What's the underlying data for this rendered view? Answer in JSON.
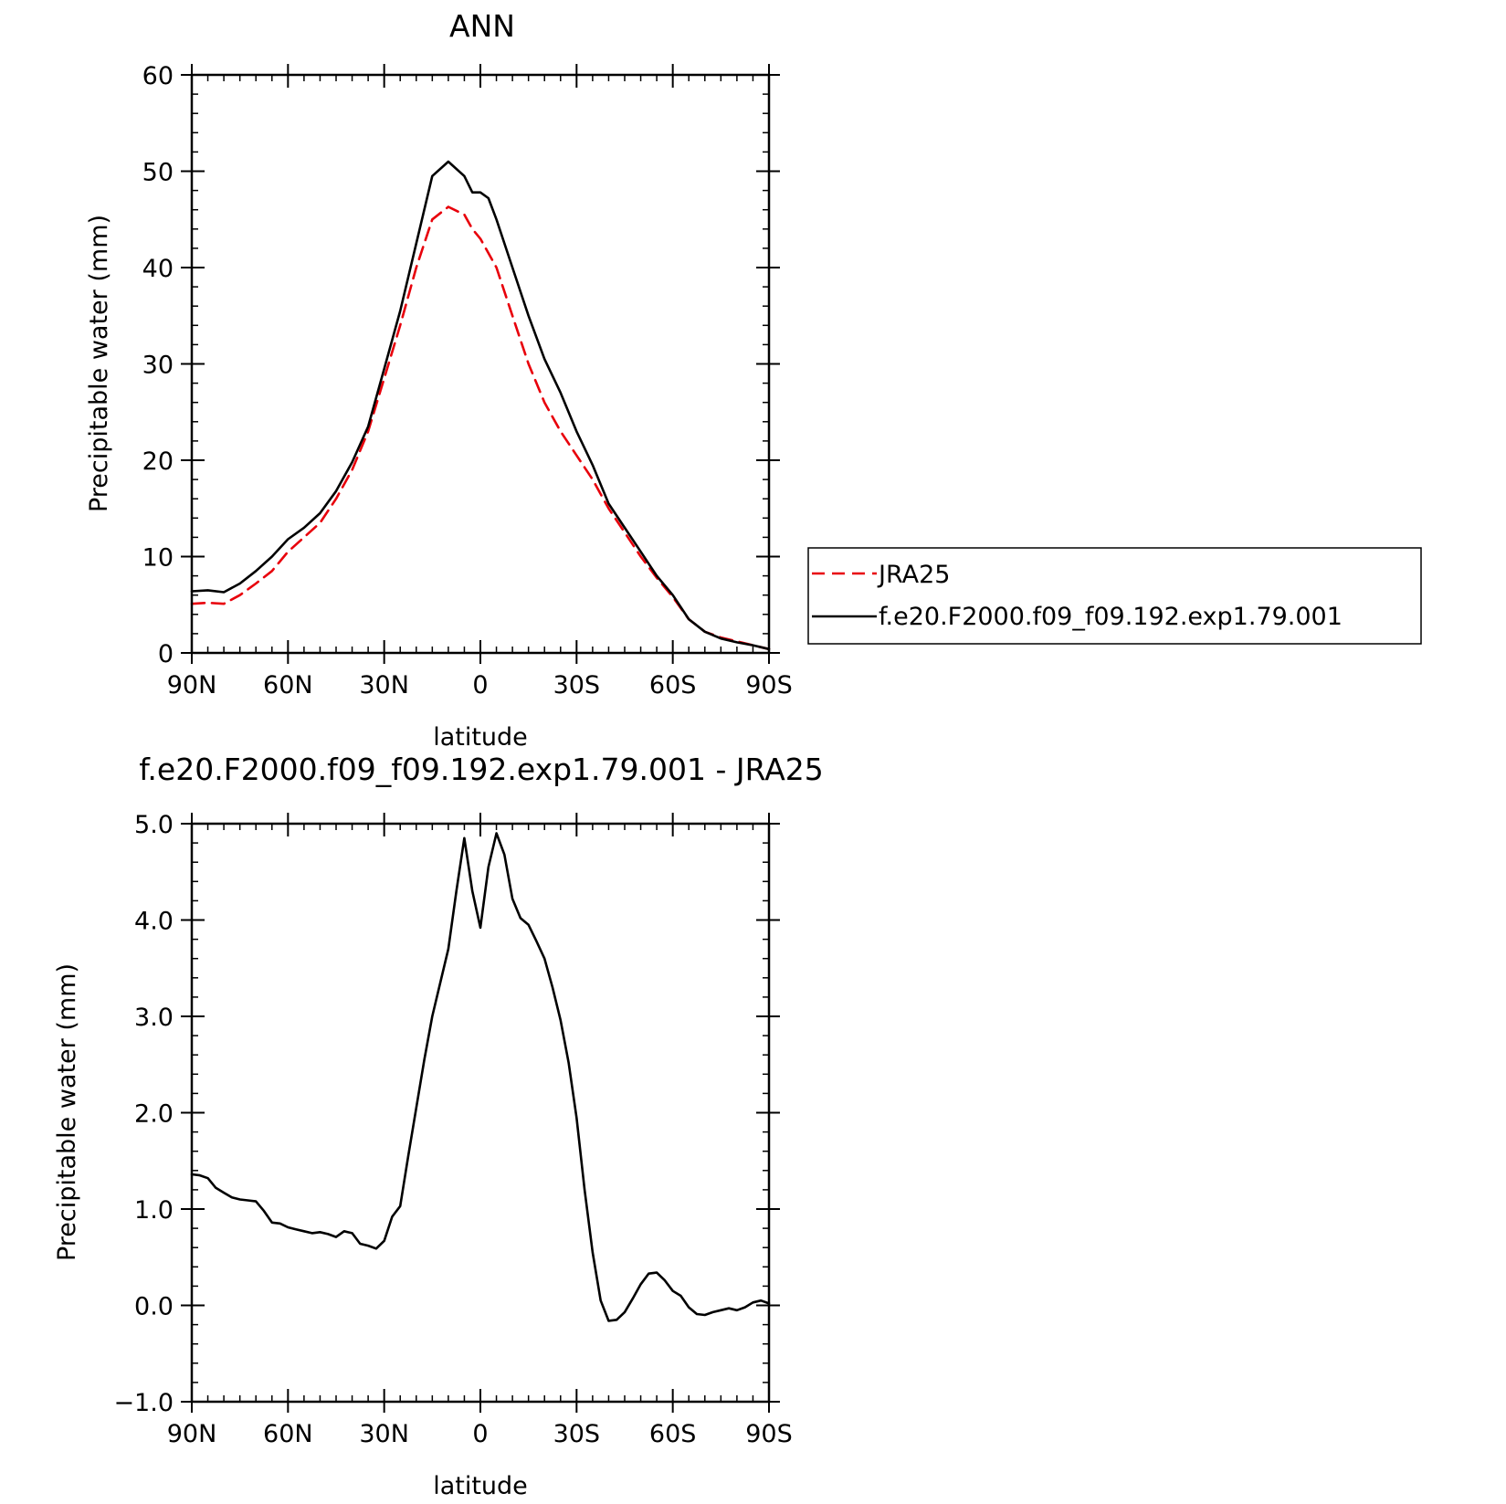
{
  "chart_data": [
    {
      "type": "line",
      "title": "ANN",
      "xlabel": "latitude",
      "ylabel": "Precipitable water (mm)",
      "xlim": [
        90,
        -90
      ],
      "ylim": [
        0,
        60
      ],
      "x_tick_values": [
        90,
        60,
        30,
        0,
        -30,
        -60,
        -90
      ],
      "x_tick_labels": [
        "90N",
        "60N",
        "30N",
        "0",
        "30S",
        "60S",
        "90S"
      ],
      "y_tick_values": [
        0,
        10,
        20,
        30,
        40,
        50,
        60
      ],
      "y_tick_labels": [
        "0",
        "10",
        "20",
        "30",
        "40",
        "50",
        "60"
      ],
      "legend_position": "right",
      "series": [
        {
          "name": "JRA25",
          "color": "#e8000b",
          "dash": "dashed",
          "x": [
            90,
            85,
            80,
            75,
            70,
            65,
            60,
            55,
            50,
            45,
            40,
            35,
            30,
            25,
            20,
            15,
            10,
            5,
            2.5,
            0,
            -5,
            -10,
            -15,
            -20,
            -25,
            -30,
            -35,
            -40,
            -45,
            -50,
            -55,
            -60,
            -65,
            -70,
            -75,
            -80,
            -85,
            -90
          ],
          "values": [
            5.1,
            5.2,
            5.1,
            6.0,
            7.2,
            8.5,
            10.5,
            12.0,
            13.5,
            16.0,
            19.0,
            23.0,
            28.5,
            34.0,
            40.0,
            45.0,
            46.3,
            45.5,
            44.0,
            43.0,
            40.0,
            35.0,
            30.0,
            26.0,
            23.0,
            20.5,
            18.0,
            15.0,
            12.5,
            10.0,
            7.8,
            5.8,
            3.5,
            2.2,
            1.6,
            1.2,
            0.8,
            0.4
          ]
        },
        {
          "name": "f.e20.F2000.f09_f09.192.exp1.79.001",
          "color": "#000000",
          "dash": "solid",
          "x": [
            90,
            85,
            80,
            75,
            70,
            65,
            60,
            55,
            50,
            45,
            40,
            35,
            30,
            25,
            20,
            15,
            10,
            5,
            2.5,
            0,
            -2.5,
            -5,
            -10,
            -15,
            -20,
            -25,
            -30,
            -35,
            -40,
            -45,
            -50,
            -55,
            -60,
            -65,
            -70,
            -75,
            -80,
            -85,
            -90
          ],
          "values": [
            6.4,
            6.5,
            6.3,
            7.2,
            8.5,
            10.0,
            11.8,
            13.0,
            14.5,
            16.8,
            19.8,
            23.5,
            29.5,
            35.5,
            42.5,
            49.5,
            51.0,
            49.5,
            47.8,
            47.8,
            47.2,
            45.0,
            40.0,
            35.0,
            30.5,
            27.0,
            23.0,
            19.5,
            15.5,
            13.0,
            10.5,
            8.0,
            6.0,
            3.5,
            2.2,
            1.5,
            1.1,
            0.8,
            0.4
          ]
        }
      ]
    },
    {
      "type": "line",
      "title": "f.e20.F2000.f09_f09.192.exp1.79.001 - JRA25",
      "xlabel": "latitude",
      "ylabel": "Precipitable water (mm)",
      "xlim": [
        90,
        -90
      ],
      "ylim": [
        -1.0,
        5.0
      ],
      "x_tick_values": [
        90,
        60,
        30,
        0,
        -30,
        -60,
        -90
      ],
      "x_tick_labels": [
        "90N",
        "60N",
        "30N",
        "0",
        "30S",
        "60S",
        "90S"
      ],
      "y_tick_values": [
        -1.0,
        0.0,
        1.0,
        2.0,
        3.0,
        4.0,
        5.0
      ],
      "y_tick_labels": [
        "-1.0",
        "0.0",
        "1.0",
        "2.0",
        "3.0",
        "4.0",
        "5.0"
      ],
      "series": [
        {
          "color": "#000000",
          "dash": "solid",
          "x": [
            90,
            87.5,
            85,
            82.5,
            80,
            77.5,
            75,
            72.5,
            70,
            67.5,
            65,
            62.5,
            60,
            57.5,
            55,
            52.5,
            50,
            47.5,
            45,
            42.5,
            40,
            37.5,
            35,
            32.5,
            30,
            27.5,
            25,
            22.5,
            20,
            17.5,
            15,
            12.5,
            10,
            7.5,
            5,
            2.5,
            0,
            -2.5,
            -5,
            -7.5,
            -10,
            -12.5,
            -15,
            -17.5,
            -20,
            -22.5,
            -25,
            -27.5,
            -30,
            -32.5,
            -35,
            -37.5,
            -40,
            -42.5,
            -45,
            -47.5,
            -50,
            -52.5,
            -55,
            -57.5,
            -60,
            -62.5,
            -65,
            -67.5,
            -70,
            -72.5,
            -75,
            -77.5,
            -80,
            -82.5,
            -85,
            -87.5,
            -90
          ],
          "values": [
            1.36,
            1.35,
            1.32,
            1.22,
            1.17,
            1.12,
            1.1,
            1.09,
            1.08,
            0.98,
            0.86,
            0.85,
            0.81,
            0.79,
            0.77,
            0.75,
            0.76,
            0.74,
            0.71,
            0.77,
            0.75,
            0.64,
            0.62,
            0.59,
            0.67,
            0.92,
            1.03,
            1.55,
            2.05,
            2.55,
            3.0,
            3.35,
            3.7,
            4.3,
            4.85,
            4.3,
            3.92,
            4.55,
            4.9,
            4.68,
            4.22,
            4.02,
            3.95,
            3.78,
            3.6,
            3.3,
            2.96,
            2.52,
            1.95,
            1.2,
            0.55,
            0.05,
            -0.16,
            -0.15,
            -0.07,
            0.07,
            0.22,
            0.33,
            0.34,
            0.26,
            0.15,
            0.1,
            -0.02,
            -0.09,
            -0.1,
            -0.07,
            -0.05,
            -0.03,
            -0.05,
            -0.02,
            0.03,
            0.05,
            0.02
          ]
        }
      ]
    }
  ]
}
